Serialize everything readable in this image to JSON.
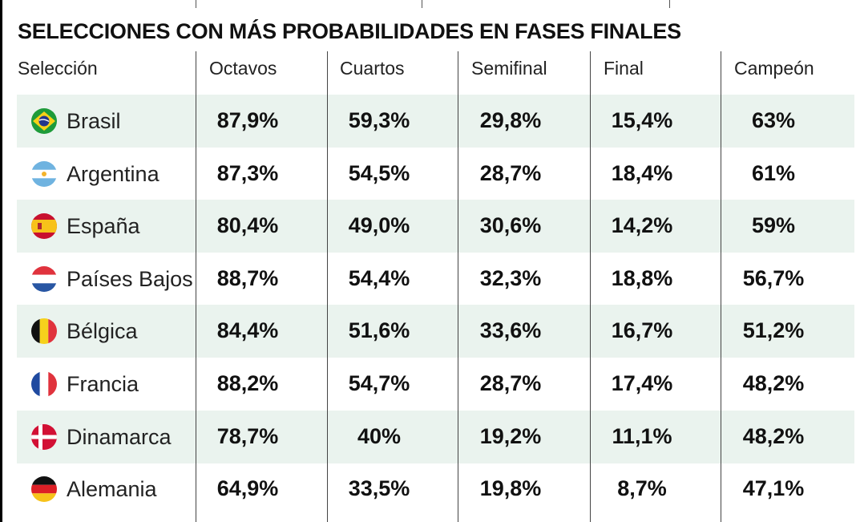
{
  "chart_data": {
    "type": "table",
    "title": "SELECCIONES CON MÁS PROBABILIDADES EN FASES FINALES",
    "columns": [
      "Selección",
      "Octavos",
      "Cuartos",
      "Semifinal",
      "Final",
      "Campeón"
    ],
    "rows": [
      {
        "country": "Brasil",
        "flag": "brazil-flag-icon",
        "values": [
          "87,9%",
          "59,3%",
          "29,8%",
          "15,4%",
          "63%"
        ]
      },
      {
        "country": "Argentina",
        "flag": "argentina-flag-icon",
        "values": [
          "87,3%",
          "54,5%",
          "28,7%",
          "18,4%",
          "61%"
        ]
      },
      {
        "country": "España",
        "flag": "spain-flag-icon",
        "values": [
          "80,4%",
          "49,0%",
          "30,6%",
          "14,2%",
          "59%"
        ]
      },
      {
        "country": "Países Bajos",
        "flag": "netherlands-flag-icon",
        "values": [
          "88,7%",
          "54,4%",
          "32,3%",
          "18,8%",
          "56,7%"
        ]
      },
      {
        "country": "Bélgica",
        "flag": "belgium-flag-icon",
        "values": [
          "84,4%",
          "51,6%",
          "33,6%",
          "16,7%",
          "51,2%"
        ]
      },
      {
        "country": "Francia",
        "flag": "france-flag-icon",
        "values": [
          "88,2%",
          "54,7%",
          "28,7%",
          "17,4%",
          "48,2%"
        ]
      },
      {
        "country": "Dinamarca",
        "flag": "denmark-flag-icon",
        "values": [
          "78,7%",
          "40%",
          "19,2%",
          "11,1%",
          "48,2%"
        ]
      },
      {
        "country": "Alemania",
        "flag": "germany-flag-icon",
        "values": [
          "64,9%",
          "33,5%",
          "19,8%",
          "8,7%",
          "47,1%"
        ]
      }
    ],
    "row_shading": "alternating",
    "shade_color": "#eaf3ee"
  }
}
